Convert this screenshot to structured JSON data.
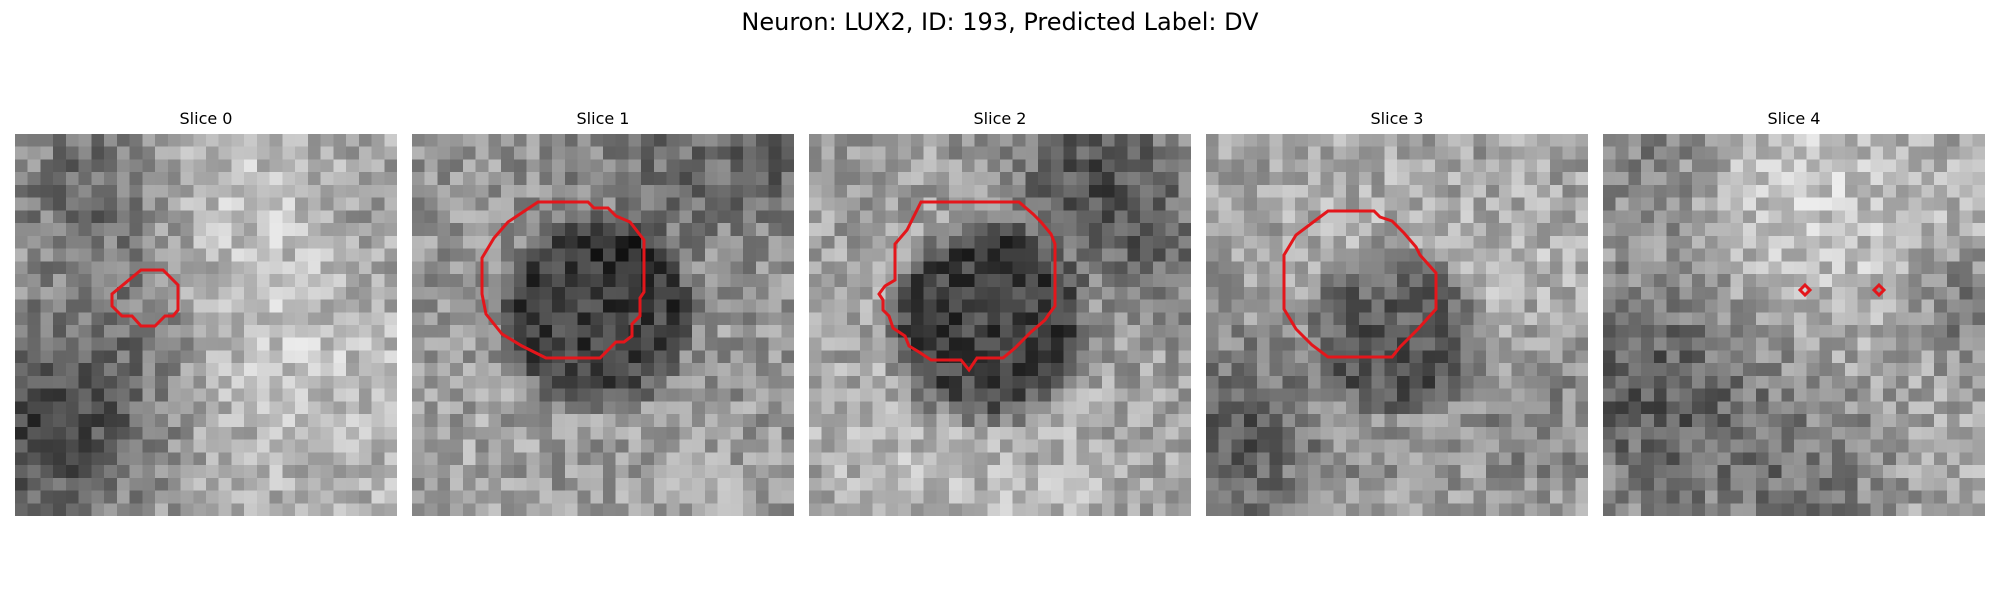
{
  "figure": {
    "title": "Neuron: LUX2, ID: 193, Predicted Label: DV"
  },
  "colors": {
    "contour": "#e4161b",
    "background": "#ffffff",
    "colormap": "gray"
  },
  "panels": [
    {
      "title": "Slice 0",
      "seed": 11,
      "pattern": "slice0",
      "contour": "small"
    },
    {
      "title": "Slice 1",
      "seed": 23,
      "pattern": "slice1",
      "contour": "large"
    },
    {
      "title": "Slice 2",
      "seed": 37,
      "pattern": "slice2",
      "contour": "large"
    },
    {
      "title": "Slice 3",
      "seed": 51,
      "pattern": "slice3",
      "contour": "medium"
    },
    {
      "title": "Slice 4",
      "seed": 67,
      "pattern": "slice4",
      "contour": "two-markers"
    }
  ]
}
